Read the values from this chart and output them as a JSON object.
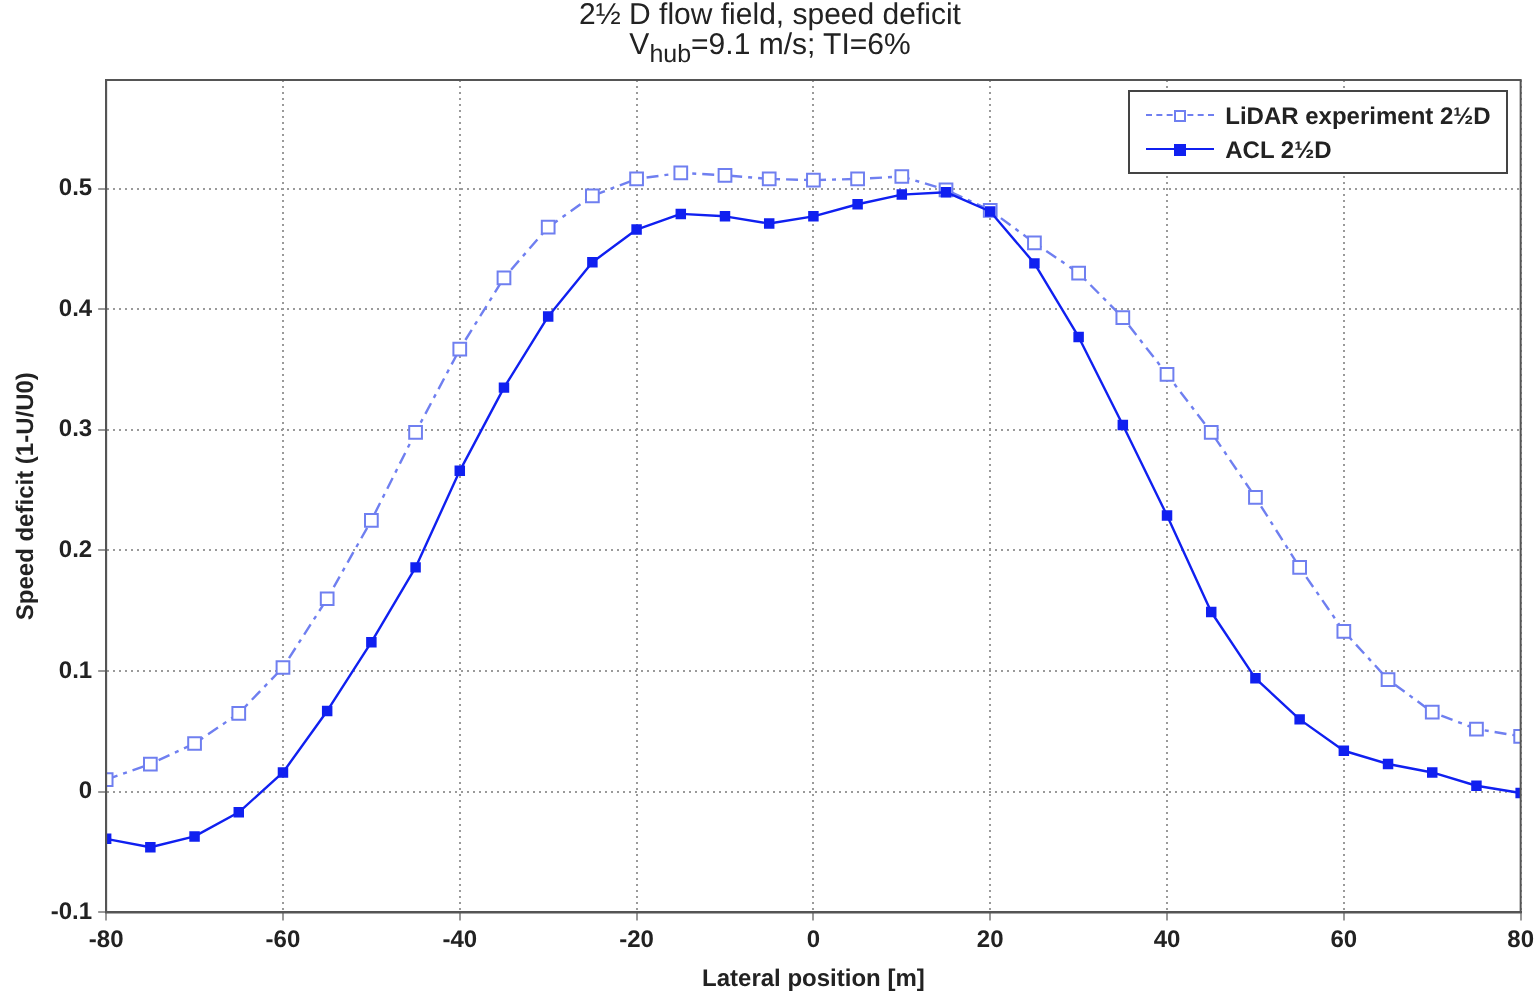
{
  "chart_data": {
    "type": "line",
    "title": "2½ D flow field, speed deficit",
    "subtitle": "V$_{hub}$=9.1 m/s; TI=6%",
    "xlabel": "Lateral position [m]",
    "ylabel": "Speed deficit (1-U/U0)",
    "x": [
      -80,
      -75,
      -70,
      -65,
      -60,
      -55,
      -50,
      -45,
      -40,
      -35,
      -30,
      -25,
      -20,
      -15,
      -10,
      -5,
      0,
      5,
      10,
      15,
      20,
      25,
      30,
      35,
      40,
      45,
      50,
      55,
      60,
      65,
      70,
      75,
      80
    ],
    "series": [
      {
        "name": "LiDAR experiment 2½D",
        "color": "#6f7ff0",
        "line_style": "dashed",
        "values": [
          0.01,
          0.023,
          0.04,
          0.065,
          0.103,
          0.16,
          0.225,
          0.298,
          0.367,
          0.426,
          0.468,
          0.494,
          0.508,
          0.513,
          0.511,
          0.508,
          0.507,
          0.508,
          0.51,
          0.499,
          0.482,
          0.455,
          0.43,
          0.393,
          0.346,
          0.298,
          0.244,
          0.186,
          0.133,
          0.093,
          0.066,
          0.052,
          0.046
        ]
      },
      {
        "name": "ACL 2½D",
        "color": "#1020f0",
        "line_style": "solid",
        "values": [
          -0.039,
          -0.046,
          -0.037,
          -0.017,
          0.016,
          0.067,
          0.124,
          0.186,
          0.266,
          0.335,
          0.394,
          0.439,
          0.466,
          0.479,
          0.477,
          0.471,
          0.477,
          0.487,
          0.495,
          0.497,
          0.481,
          0.438,
          0.377,
          0.304,
          0.229,
          0.149,
          0.094,
          0.06,
          0.034,
          0.023,
          0.016,
          0.005,
          -0.001
        ]
      }
    ],
    "xlim": [
      -80,
      80
    ],
    "xticks": [
      -80,
      -60,
      -40,
      -20,
      0,
      20,
      40,
      60,
      80
    ],
    "ylim": [
      -0.1,
      0.59
    ],
    "yticks": [
      -0.1,
      0,
      0.1,
      0.2,
      0.3,
      0.4,
      0.5
    ],
    "grid": true,
    "legend": "top right",
    "marker": "square"
  }
}
